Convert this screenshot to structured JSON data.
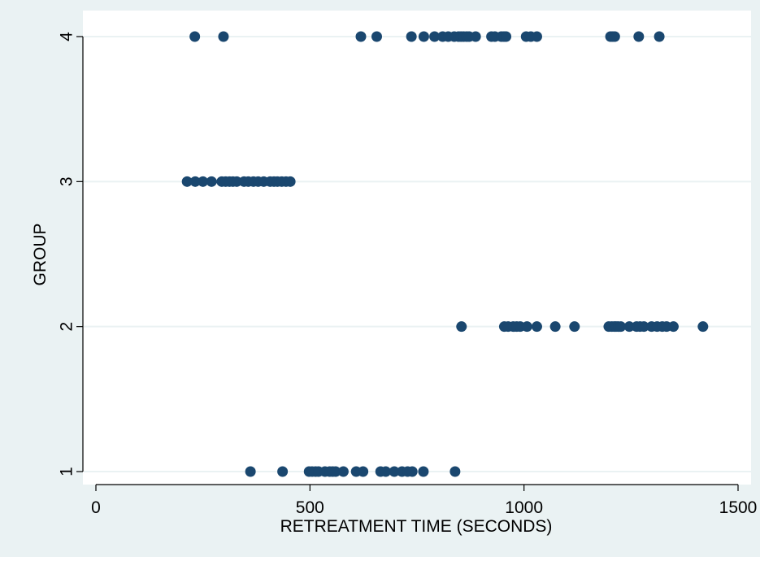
{
  "chart_data": {
    "type": "scatter",
    "title": "",
    "xlabel": "RETREATMENT TIME (SECONDS)",
    "ylabel": "GROUP",
    "xlim": [
      -60,
      1520
    ],
    "ylim": [
      0.92,
      4.08
    ],
    "xticks": [
      0,
      500,
      1000,
      1500
    ],
    "yticks": [
      1,
      2,
      3,
      4
    ],
    "grid": true,
    "legend": "none",
    "colors": {
      "outer_background": "#eaf2f3",
      "plot_background": "#ffffff",
      "gridline": "#eaf2f3",
      "marker": "#1a476f",
      "axis": "#000000"
    },
    "series": [
      {
        "x": [
          231,
          298,
          619,
          656,
          737,
          766,
          791,
          810,
          823,
          837,
          847,
          853,
          859,
          866,
          872,
          887,
          924,
          932,
          947,
          953,
          958,
          1005,
          1016,
          1030,
          1202,
          1207,
          1212,
          1268,
          1316,
          213,
          232,
          250,
          270,
          294,
          303,
          312,
          320,
          329,
          346,
          356,
          368,
          379,
          392,
          407,
          416,
          424,
          434,
          444,
          454,
          854,
          954,
          963,
          975,
          983,
          991,
          1007,
          1030,
          1073,
          1118,
          1198,
          1205,
          1211,
          1215,
          1220,
          1226,
          1246,
          1263,
          1271,
          1280,
          1298,
          1311,
          1323,
          1333,
          1349,
          1418,
          361,
          436,
          498,
          505,
          513,
          520,
          535,
          546,
          553,
          560,
          578,
          608,
          624,
          665,
          677,
          697,
          715,
          728,
          739,
          765,
          839
        ],
        "y": [
          4,
          4,
          4,
          4,
          4,
          4,
          4,
          4,
          4,
          4,
          4,
          4,
          4,
          4,
          4,
          4,
          4,
          4,
          4,
          4,
          4,
          4,
          4,
          4,
          4,
          4,
          4,
          4,
          4,
          3,
          3,
          3,
          3,
          3,
          3,
          3,
          3,
          3,
          3,
          3,
          3,
          3,
          3,
          3,
          3,
          3,
          3,
          3,
          3,
          2,
          2,
          2,
          2,
          2,
          2,
          2,
          2,
          2,
          2,
          2,
          2,
          2,
          2,
          2,
          2,
          2,
          2,
          2,
          2,
          2,
          2,
          2,
          2,
          2,
          2,
          1,
          1,
          1,
          1,
          1,
          1,
          1,
          1,
          1,
          1,
          1,
          1,
          1,
          1,
          1,
          1,
          1,
          1,
          1,
          1,
          1
        ]
      }
    ]
  }
}
